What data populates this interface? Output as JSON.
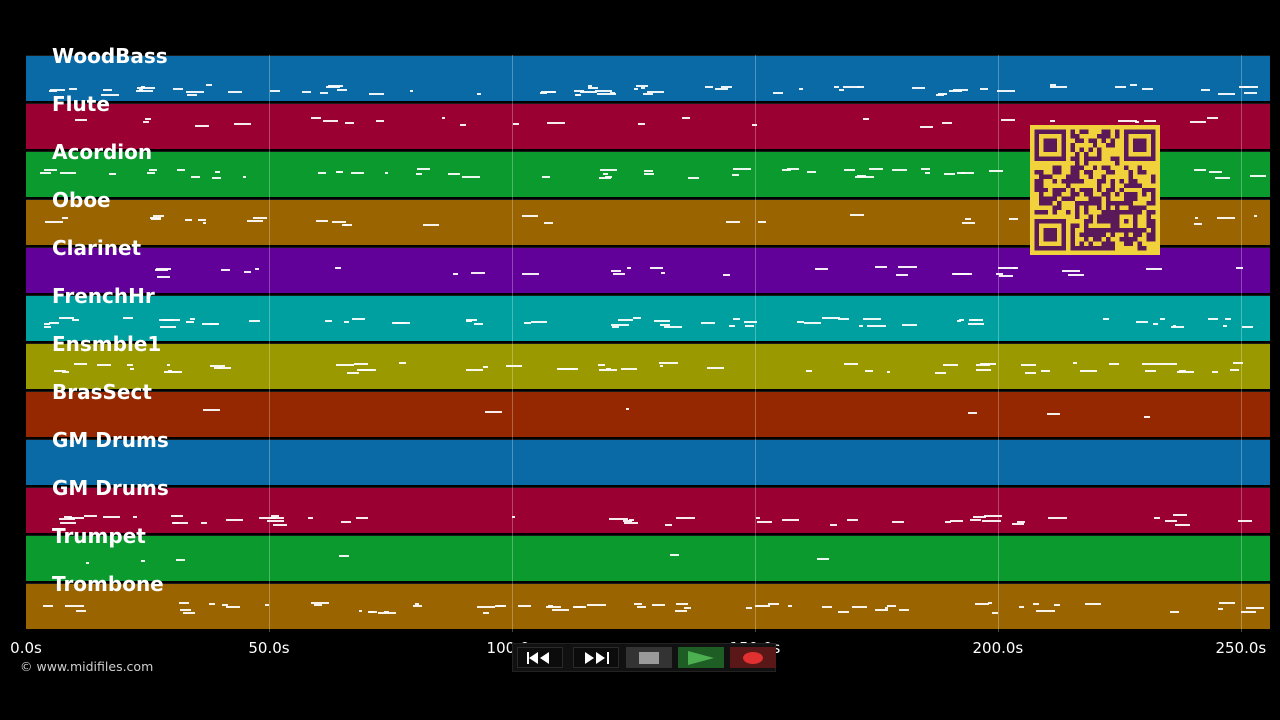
{
  "tracks": [
    {
      "name": "WoodBass",
      "color": "#0a6aa6",
      "note_density": 0.55,
      "note_pitch": 0.72
    },
    {
      "name": "Flute",
      "color": "#9a0032",
      "note_density": 0.22,
      "note_pitch": 0.38
    },
    {
      "name": "Acordion",
      "color": "#0a9a2e",
      "note_density": 0.42,
      "note_pitch": 0.45
    },
    {
      "name": "Oboe",
      "color": "#9a6400",
      "note_density": 0.24,
      "note_pitch": 0.42
    },
    {
      "name": "Clarinet",
      "color": "#62009a",
      "note_density": 0.26,
      "note_pitch": 0.5
    },
    {
      "name": "FrenchHr",
      "color": "#00a0a0",
      "note_density": 0.5,
      "note_pitch": 0.55
    },
    {
      "name": "Ensmble1",
      "color": "#9a9a00",
      "note_density": 0.45,
      "note_pitch": 0.5
    },
    {
      "name": "BrasSect",
      "color": "#952800",
      "note_density": 0.05,
      "note_pitch": 0.42
    },
    {
      "name": "GM Drums",
      "color": "#0a6aa6",
      "note_density": 0.0,
      "note_pitch": 0.5
    },
    {
      "name": "GM Drums",
      "color": "#9a0032",
      "note_density": 0.4,
      "note_pitch": 0.68
    },
    {
      "name": "Trumpet",
      "color": "#0a9a2e",
      "note_density": 0.05,
      "note_pitch": 0.45
    },
    {
      "name": "Trombone",
      "color": "#9a6400",
      "note_density": 0.5,
      "note_pitch": 0.5
    }
  ],
  "time_axis": {
    "max_seconds": 256,
    "ticks": [
      {
        "seconds": 0,
        "label": "0.0s"
      },
      {
        "seconds": 50,
        "label": "50.0s"
      },
      {
        "seconds": 100,
        "label": "100.0s"
      },
      {
        "seconds": 150,
        "label": "150.0s"
      },
      {
        "seconds": 200,
        "label": "200.0s"
      },
      {
        "seconds": 250,
        "label": "250.0s"
      }
    ]
  },
  "copyright": "© www.midifiles.com",
  "transport": {
    "rewind_icon": "rewind-icon",
    "ffwd_icon": "fast-forward-icon",
    "stop_icon": "stop-icon",
    "play_icon": "play-icon",
    "record_icon": "record-icon",
    "stop_color": "#9a9a9a",
    "play_color": "#4caf50",
    "record_color": "#e03030"
  },
  "qr_code": {
    "icon": "qr-code-icon",
    "fg": "#5a1a5a",
    "bg": "#f2d23c"
  }
}
